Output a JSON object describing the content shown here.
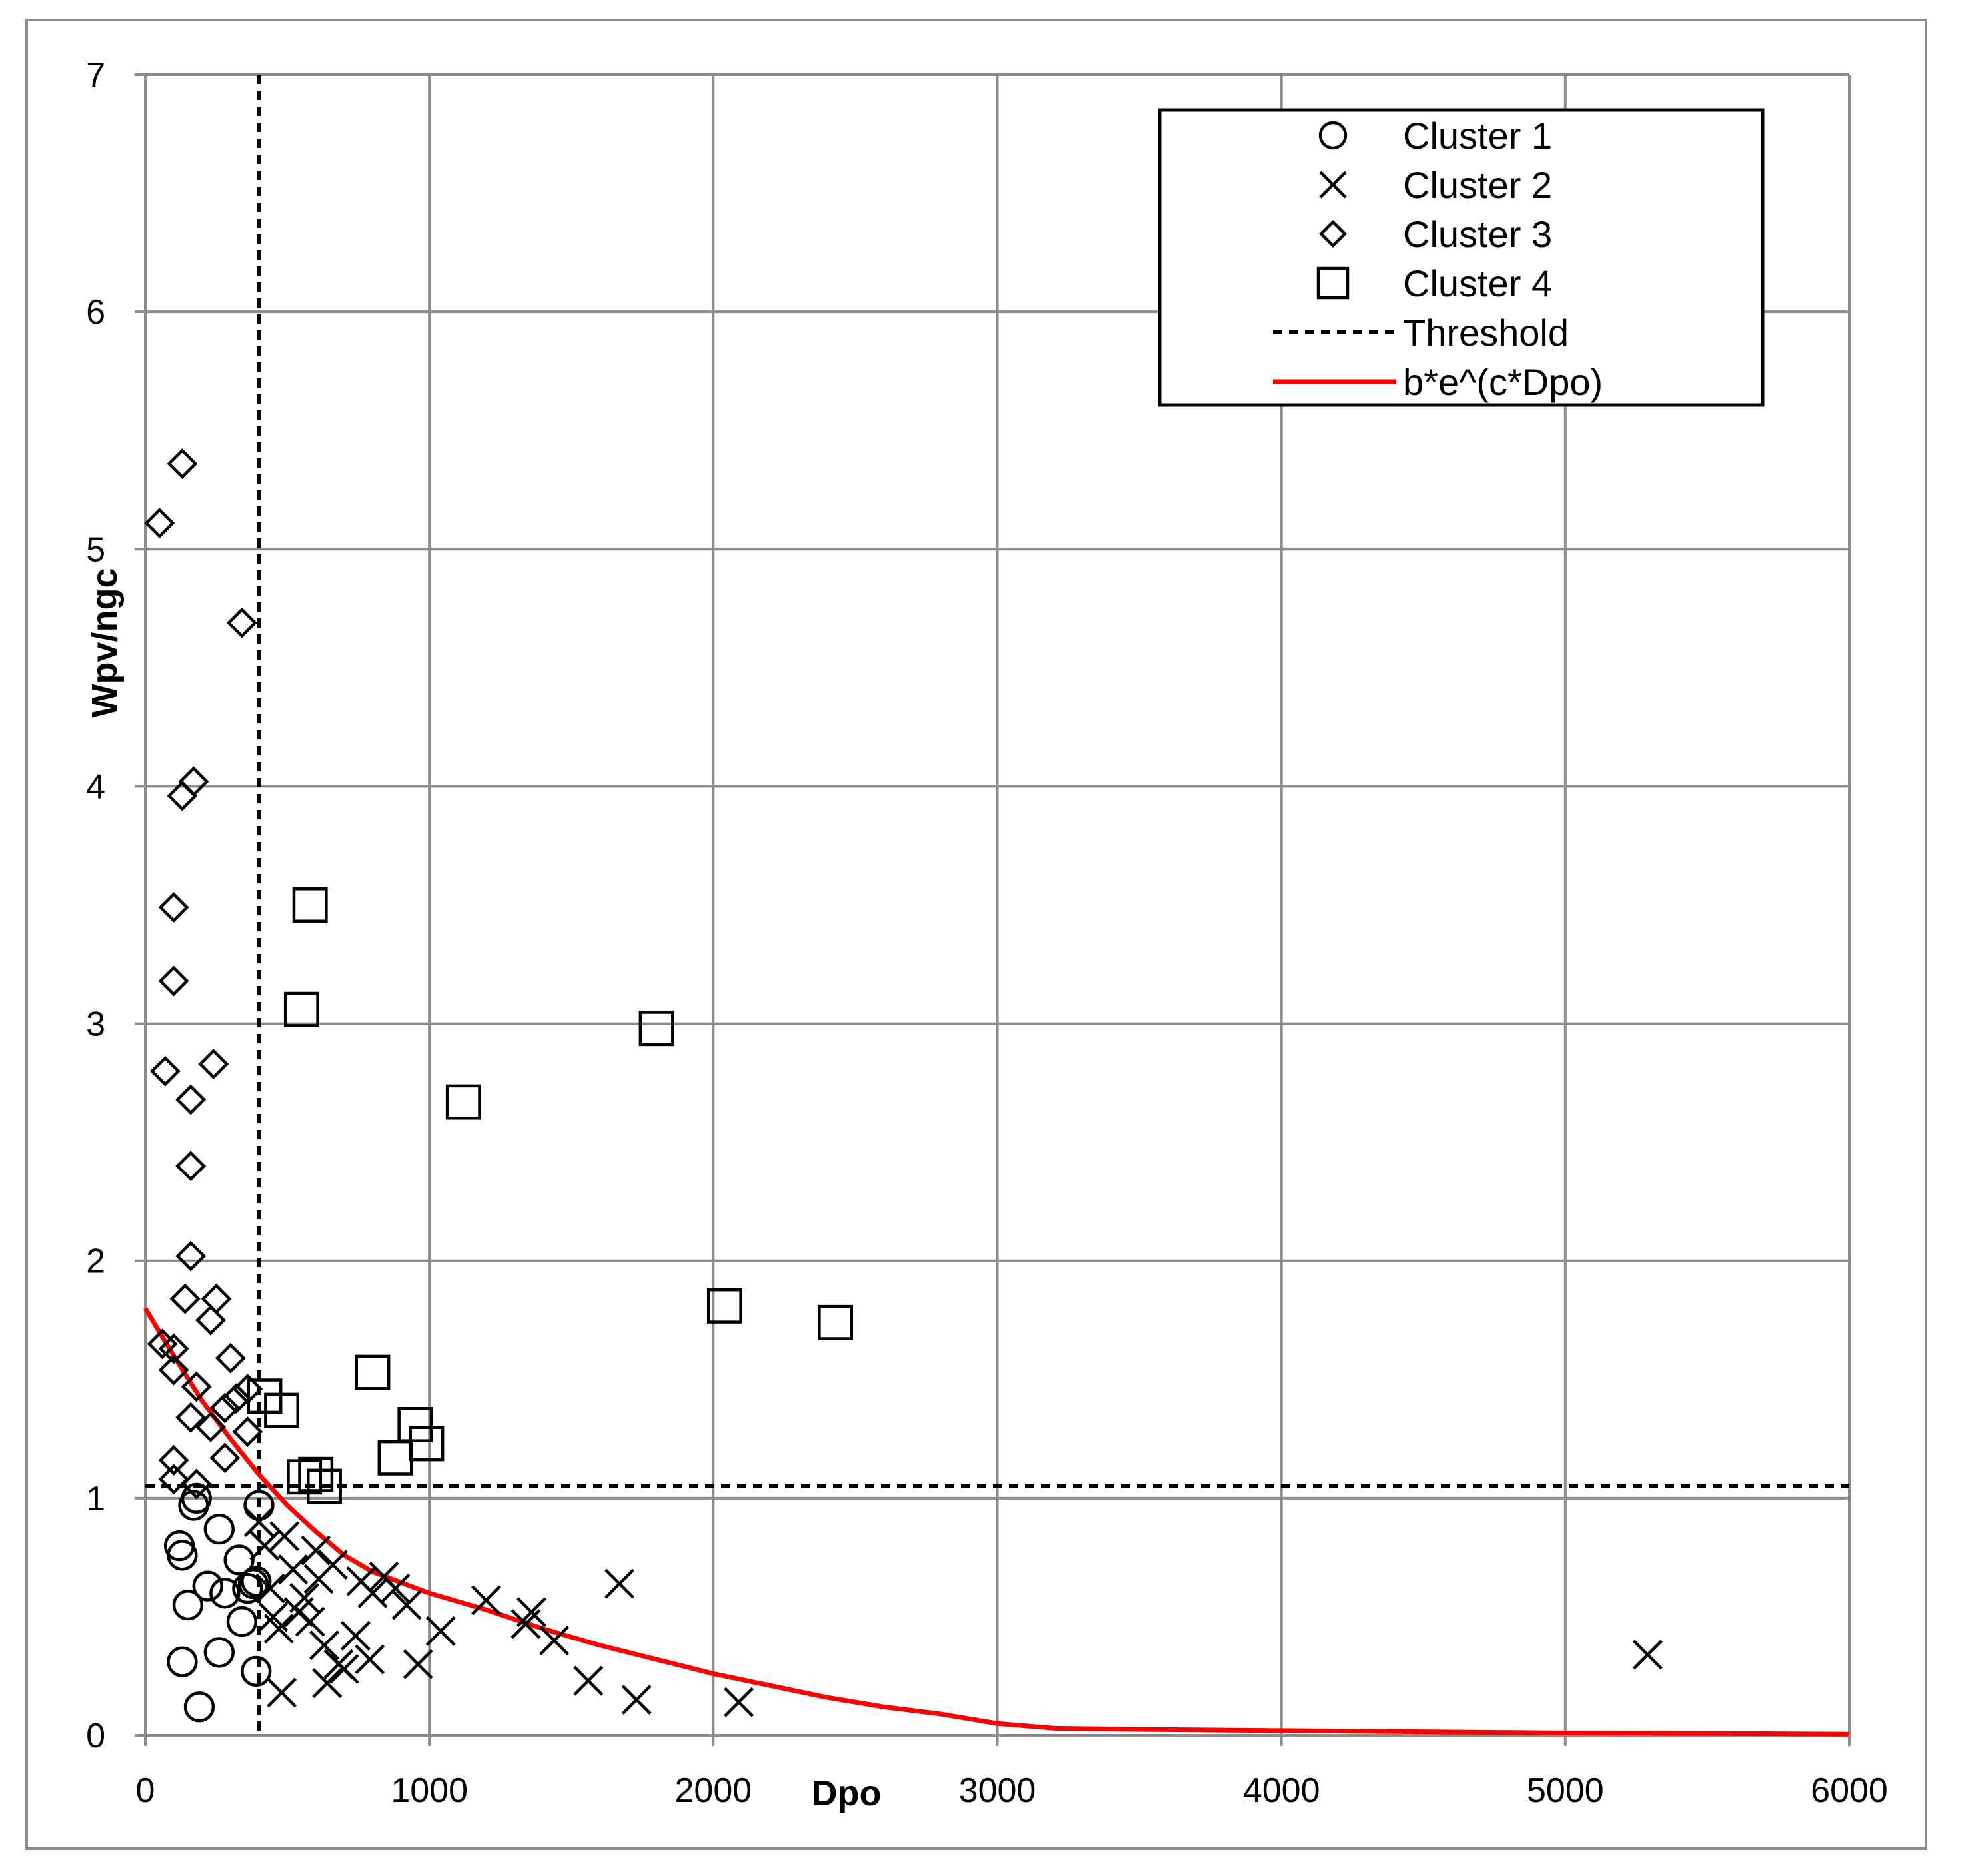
{
  "chart_data": {
    "type": "scatter",
    "title": "",
    "xlabel": "Dpo",
    "ylabel": "Wpv/ngc",
    "xlim": [
      0,
      6000
    ],
    "ylim": [
      0,
      7
    ],
    "xticks": [
      "0",
      "1000",
      "2000",
      "3000",
      "4000",
      "5000",
      "6000"
    ],
    "yticks": [
      "0",
      "1",
      "2",
      "3",
      "4",
      "5",
      "6",
      "7"
    ],
    "grid": true,
    "legend_position": "top-right",
    "series": [
      {
        "name": "Cluster 1",
        "marker": "circle",
        "points": [
          [
            120,
            0.8
          ],
          [
            130,
            0.76
          ],
          [
            130,
            0.31
          ],
          [
            150,
            0.55
          ],
          [
            170,
            0.97
          ],
          [
            180,
            1.0
          ],
          [
            190,
            0.12
          ],
          [
            220,
            0.63
          ],
          [
            260,
            0.35
          ],
          [
            260,
            0.87
          ],
          [
            280,
            0.6
          ],
          [
            330,
            0.74
          ],
          [
            340,
            0.48
          ],
          [
            360,
            0.62
          ],
          [
            380,
            0.64
          ],
          [
            390,
            0.65
          ],
          [
            390,
            0.27
          ],
          [
            400,
            0.97
          ]
        ]
      },
      {
        "name": "Cluster 2",
        "marker": "x",
        "points": [
          [
            400,
            0.9
          ],
          [
            420,
            0.8
          ],
          [
            440,
            0.62
          ],
          [
            450,
            0.5
          ],
          [
            470,
            0.45
          ],
          [
            480,
            0.18
          ],
          [
            490,
            0.84
          ],
          [
            520,
            0.7
          ],
          [
            540,
            0.52
          ],
          [
            560,
            0.58
          ],
          [
            580,
            0.48
          ],
          [
            600,
            0.78
          ],
          [
            610,
            0.66
          ],
          [
            630,
            0.38
          ],
          [
            640,
            0.22
          ],
          [
            660,
            0.72
          ],
          [
            680,
            0.3
          ],
          [
            700,
            0.28
          ],
          [
            740,
            0.42
          ],
          [
            760,
            0.65
          ],
          [
            790,
            0.32
          ],
          [
            800,
            0.6
          ],
          [
            840,
            0.67
          ],
          [
            880,
            0.62
          ],
          [
            920,
            0.55
          ],
          [
            960,
            0.3
          ],
          [
            1040,
            0.44
          ],
          [
            1200,
            0.57
          ],
          [
            1340,
            0.47
          ],
          [
            1360,
            0.52
          ],
          [
            1440,
            0.4
          ],
          [
            1560,
            0.23
          ],
          [
            1670,
            0.64
          ],
          [
            1730,
            0.15
          ],
          [
            2090,
            0.14
          ],
          [
            5290,
            0.34
          ]
        ]
      },
      {
        "name": "Cluster 3",
        "marker": "diamond",
        "points": [
          [
            50,
            5.11
          ],
          [
            130,
            5.36
          ],
          [
            340,
            4.69
          ],
          [
            170,
            4.02
          ],
          [
            130,
            3.96
          ],
          [
            100,
            3.49
          ],
          [
            100,
            3.18
          ],
          [
            70,
            2.8
          ],
          [
            240,
            2.83
          ],
          [
            160,
            2.68
          ],
          [
            160,
            2.4
          ],
          [
            160,
            2.02
          ],
          [
            140,
            1.84
          ],
          [
            250,
            1.84
          ],
          [
            230,
            1.75
          ],
          [
            60,
            1.65
          ],
          [
            100,
            1.63
          ],
          [
            300,
            1.59
          ],
          [
            100,
            1.54
          ],
          [
            180,
            1.47
          ],
          [
            320,
            1.42
          ],
          [
            360,
            1.46
          ],
          [
            280,
            1.38
          ],
          [
            160,
            1.34
          ],
          [
            230,
            1.3
          ],
          [
            360,
            1.28
          ],
          [
            280,
            1.17
          ],
          [
            100,
            1.16
          ],
          [
            100,
            1.08
          ],
          [
            180,
            1.06
          ]
        ]
      },
      {
        "name": "Cluster 4",
        "marker": "square",
        "points": [
          [
            580,
            3.5
          ],
          [
            550,
            3.06
          ],
          [
            1800,
            2.98
          ],
          [
            1120,
            2.67
          ],
          [
            2040,
            1.81
          ],
          [
            2430,
            1.74
          ],
          [
            800,
            1.53
          ],
          [
            420,
            1.43
          ],
          [
            480,
            1.37
          ],
          [
            950,
            1.31
          ],
          [
            990,
            1.23
          ],
          [
            880,
            1.17
          ],
          [
            600,
            1.1
          ],
          [
            560,
            1.09
          ],
          [
            630,
            1.05
          ]
        ]
      },
      {
        "name": "Threshold",
        "type": "dashed-lines",
        "x_threshold": 400,
        "y_threshold": 1.05
      },
      {
        "name": "b*e^(c*Dpo)",
        "type": "line",
        "color": "#ff0000",
        "x": [
          0,
          100,
          200,
          300,
          400,
          500,
          600,
          700,
          800,
          1000,
          1200,
          1400,
          1600,
          1800,
          2000,
          2200,
          2400,
          2600,
          2800,
          3000,
          3200,
          3500,
          4000,
          4500,
          5000,
          5500,
          6000
        ],
        "y": [
          1.8,
          1.6,
          1.41,
          1.25,
          1.1,
          0.97,
          0.86,
          0.76,
          0.69,
          0.6,
          0.53,
          0.45,
          0.38,
          0.32,
          0.26,
          0.21,
          0.16,
          0.12,
          0.09,
          0.05,
          0.03,
          0.025,
          0.02,
          0.015,
          0.01,
          0.008,
          0.005
        ]
      }
    ]
  }
}
